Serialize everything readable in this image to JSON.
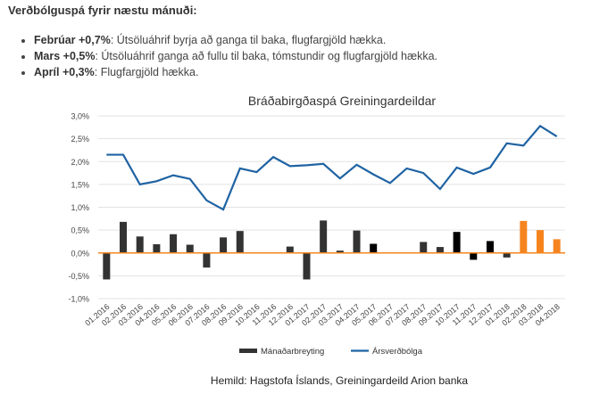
{
  "heading": "Verðbólguspá fyrir næstu mánuði:",
  "bullets": [
    {
      "bold": "Febrúar +0,7%",
      "text": ": Útsöluáhrif byrja að ganga til baka, flugfargjöld hækka."
    },
    {
      "bold": "Mars +0,5%",
      "text": ": Útsöluáhrif ganga að fullu til baka, tómstundir og flugfargjöld hækka."
    },
    {
      "bold": "Apríl +0,3%",
      "text": ": Flugfargjöld hækka."
    }
  ],
  "source": "Hemild: Hagstofa Íslands, Greiningardeild Arion banka",
  "chart_data": {
    "type": "bar+line",
    "title": "Bráðabirgðaspá Greiningardeildar",
    "ylim": [
      -1.0,
      3.0
    ],
    "yticks": [
      "-1,0%",
      "-0,5%",
      "0,0%",
      "0,5%",
      "1,0%",
      "1,5%",
      "2,0%",
      "2,5%",
      "3,0%"
    ],
    "grid": true,
    "legend_placement": "bottom",
    "categories": [
      "01.2016",
      "02.2016",
      "03.2016",
      "04.2016",
      "05.2016",
      "06.2016",
      "07.2016",
      "08.2016",
      "09.2016",
      "10.2016",
      "11.2016",
      "12.2016",
      "01.2017",
      "02.2017",
      "03.2017",
      "04.2017",
      "05.2017",
      "06.2017",
      "07.2017",
      "08.2017",
      "09.2017",
      "10.2017",
      "11.2017",
      "12.2017",
      "01.2018",
      "02.2018",
      "03.2018",
      "04.2018"
    ],
    "series": [
      {
        "name": "Mánaðarbreyting",
        "type": "bar",
        "color": "#333333",
        "values": [
          -0.58,
          0.68,
          0.36,
          0.19,
          0.41,
          0.18,
          -0.32,
          0.34,
          0.48,
          0,
          0,
          0.14,
          -0.58,
          0.71,
          0.05,
          0.49,
          0.2,
          0,
          0,
          0.24,
          0.13,
          0.46,
          -0.15,
          0.26,
          -0.1,
          0.7,
          0.5,
          0.3
        ],
        "bar_colors": [
          "#333333",
          "#333333",
          "#333333",
          "#333333",
          "#333333",
          "#333333",
          "#333333",
          "#333333",
          "#333333",
          "#333333",
          "#333333",
          "#333333",
          "#333333",
          "#333333",
          "#333333",
          "#333333",
          "#000000",
          "#000000",
          "#000000",
          "#333333",
          "#333333",
          "#000000",
          "#000000",
          "#000000",
          "#333333",
          "#f5841f",
          "#f5841f",
          "#f5841f"
        ]
      },
      {
        "name": "Ársverðbólga",
        "type": "line",
        "color": "#1f63a3",
        "values": [
          2.15,
          2.15,
          1.5,
          1.57,
          1.7,
          1.62,
          1.15,
          0.95,
          1.85,
          1.77,
          2.1,
          1.9,
          1.92,
          1.95,
          1.63,
          1.93,
          1.72,
          1.53,
          1.85,
          1.75,
          1.4,
          1.87,
          1.73,
          1.87,
          2.4,
          2.35,
          2.78,
          2.55
        ]
      }
    ],
    "zero_line_color": "#f5841f"
  }
}
